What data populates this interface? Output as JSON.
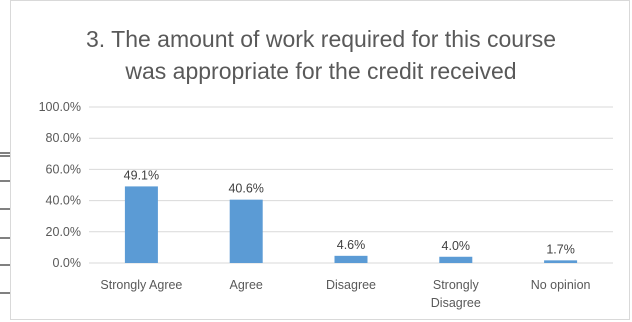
{
  "chart_data": {
    "type": "bar",
    "title_lines": [
      "3. The amount of work required for this course",
      "was appropriate for the credit received"
    ],
    "categories": [
      [
        "Strongly Agree"
      ],
      [
        "Agree"
      ],
      [
        "Disagree"
      ],
      [
        "Strongly",
        "Disagree"
      ],
      [
        "No opinion"
      ]
    ],
    "values": [
      49.1,
      40.6,
      4.6,
      4.0,
      1.7
    ],
    "value_labels": [
      "49.1%",
      "40.6%",
      "4.6%",
      "4.0%",
      "1.7%"
    ],
    "y_ticks": [
      0,
      20,
      40,
      60,
      80,
      100
    ],
    "y_tick_labels": [
      "0.0%",
      "20.0%",
      "40.0%",
      "60.0%",
      "80.0%",
      "100.0%"
    ],
    "ylim": [
      0,
      100
    ],
    "grid": true,
    "bar_color": "#5b9bd5",
    "grid_color": "#d9d9d9"
  }
}
